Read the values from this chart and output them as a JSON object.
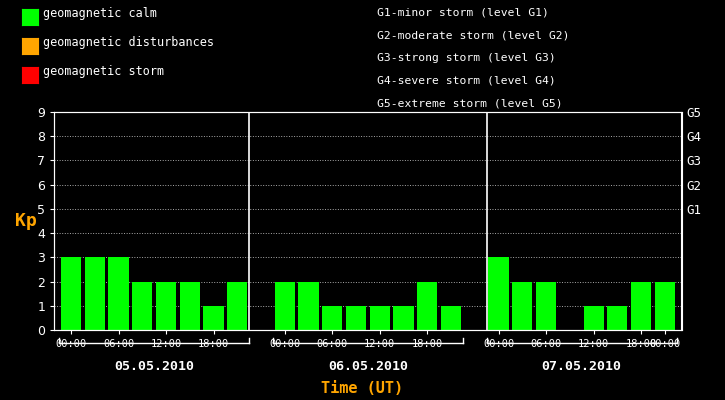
{
  "background_color": "#000000",
  "plot_bg_color": "#000000",
  "bar_color": "#00ff00",
  "axis_color": "#ffffff",
  "orange_color": "#ffa500",
  "grid_color": "#ffffff",
  "days": [
    "05.05.2010",
    "06.05.2010",
    "07.05.2010"
  ],
  "kp_values": [
    [
      3,
      3,
      3,
      2,
      2,
      2,
      1,
      2
    ],
    [
      2,
      2,
      1,
      1,
      1,
      1,
      2,
      1
    ],
    [
      3,
      2,
      2,
      0,
      1,
      1,
      2,
      2
    ]
  ],
  "xlabel": "Time (UT)",
  "ylabel": "Kp",
  "ylim": [
    0,
    9
  ],
  "yticks": [
    0,
    1,
    2,
    3,
    4,
    5,
    6,
    7,
    8,
    9
  ],
  "time_labels": [
    "00:00",
    "06:00",
    "12:00",
    "18:00",
    "00:00"
  ],
  "right_yticks": [
    5,
    6,
    7,
    8,
    9
  ],
  "right_labels": [
    "G1",
    "G2",
    "G3",
    "G4",
    "G5"
  ],
  "legend_items": [
    {
      "label": "geomagnetic calm",
      "color": "#00ff00"
    },
    {
      "label": "geomagnetic disturbances",
      "color": "#ffa500"
    },
    {
      "label": "geomagnetic storm",
      "color": "#ff0000"
    }
  ],
  "storm_legend": [
    "G1-minor storm (level G1)",
    "G2-moderate storm (level G2)",
    "G3-strong storm (level G3)",
    "G4-severe storm (level G4)",
    "G5-extreme storm (level G5)"
  ]
}
